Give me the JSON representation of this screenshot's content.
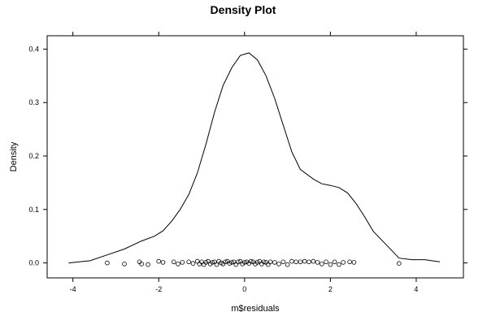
{
  "chart_data": {
    "type": "line",
    "title": "Density Plot",
    "xlabel": "m$residuals",
    "ylabel": "Density",
    "xlim": [
      -4.6,
      5.1
    ],
    "ylim": [
      -0.028,
      0.425
    ],
    "x_ticks": [
      -4,
      -2,
      0,
      2,
      4
    ],
    "x_tick_labels": [
      "-4",
      "-2",
      "0",
      "2",
      "4"
    ],
    "y_ticks": [
      0.0,
      0.1,
      0.2,
      0.3,
      0.4
    ],
    "y_tick_labels": [
      "0.0",
      "0.1",
      "0.2",
      "0.3",
      "0.4"
    ],
    "grid": false,
    "series": [
      {
        "x": [
          -4.1,
          -3.6,
          -3.2,
          -2.8,
          -2.4,
          -2.1,
          -1.9,
          -1.7,
          -1.5,
          -1.3,
          -1.1,
          -0.9,
          -0.7,
          -0.5,
          -0.3,
          -0.1,
          0.1,
          0.3,
          0.5,
          0.7,
          0.9,
          1.1,
          1.3,
          1.6,
          1.8,
          2.0,
          2.2,
          2.4,
          2.6,
          2.8,
          3.0,
          3.3,
          3.6,
          3.9,
          4.2,
          4.55
        ],
        "values": [
          0.0,
          0.004,
          0.015,
          0.026,
          0.041,
          0.05,
          0.06,
          0.078,
          0.1,
          0.128,
          0.168,
          0.222,
          0.282,
          0.332,
          0.365,
          0.388,
          0.393,
          0.38,
          0.35,
          0.308,
          0.258,
          0.208,
          0.175,
          0.157,
          0.148,
          0.145,
          0.141,
          0.131,
          0.111,
          0.086,
          0.059,
          0.034,
          0.009,
          0.006,
          0.006,
          0.002
        ]
      }
    ],
    "rug": {
      "x": [
        -3.2,
        -2.8,
        -2.45,
        -2.4,
        -2.25,
        -2.0,
        -1.9,
        -1.65,
        -1.55,
        -1.45,
        -1.3,
        -1.2,
        -1.1,
        -1.05,
        -1.0,
        -0.95,
        -0.9,
        -0.85,
        -0.8,
        -0.75,
        -0.7,
        -0.65,
        -0.6,
        -0.55,
        -0.5,
        -0.45,
        -0.4,
        -0.35,
        -0.3,
        -0.25,
        -0.2,
        -0.15,
        -0.1,
        -0.05,
        0.0,
        0.05,
        0.1,
        0.15,
        0.2,
        0.25,
        0.3,
        0.35,
        0.4,
        0.45,
        0.5,
        0.55,
        0.6,
        0.7,
        0.8,
        0.9,
        1.0,
        1.1,
        1.2,
        1.3,
        1.4,
        1.5,
        1.6,
        1.7,
        1.8,
        1.9,
        2.0,
        2.1,
        2.2,
        2.3,
        2.45,
        2.55,
        3.6
      ],
      "y": [
        0.0,
        -0.002,
        0.002,
        -0.002,
        -0.003,
        0.003,
        0.001,
        0.002,
        -0.002,
        0.001,
        0.002,
        -0.001,
        0.003,
        -0.002,
        0.002,
        -0.003,
        0.001,
        0.003,
        -0.002,
        0.001,
        0.002,
        -0.003,
        0.003,
        0.0,
        -0.002,
        0.002,
        0.003,
        -0.001,
        0.001,
        0.002,
        -0.003,
        0.002,
        0.003,
        -0.002,
        0.001,
        0.002,
        -0.001,
        0.003,
        0.002,
        -0.002,
        0.001,
        0.003,
        -0.002,
        0.002,
        0.001,
        -0.003,
        0.002,
        0.001,
        -0.002,
        0.002,
        -0.003,
        0.003,
        0.002,
        0.002,
        0.003,
        0.002,
        0.003,
        0.001,
        -0.002,
        0.002,
        -0.003,
        0.002,
        -0.003,
        0.001,
        0.002,
        0.001,
        -0.001
      ]
    }
  }
}
